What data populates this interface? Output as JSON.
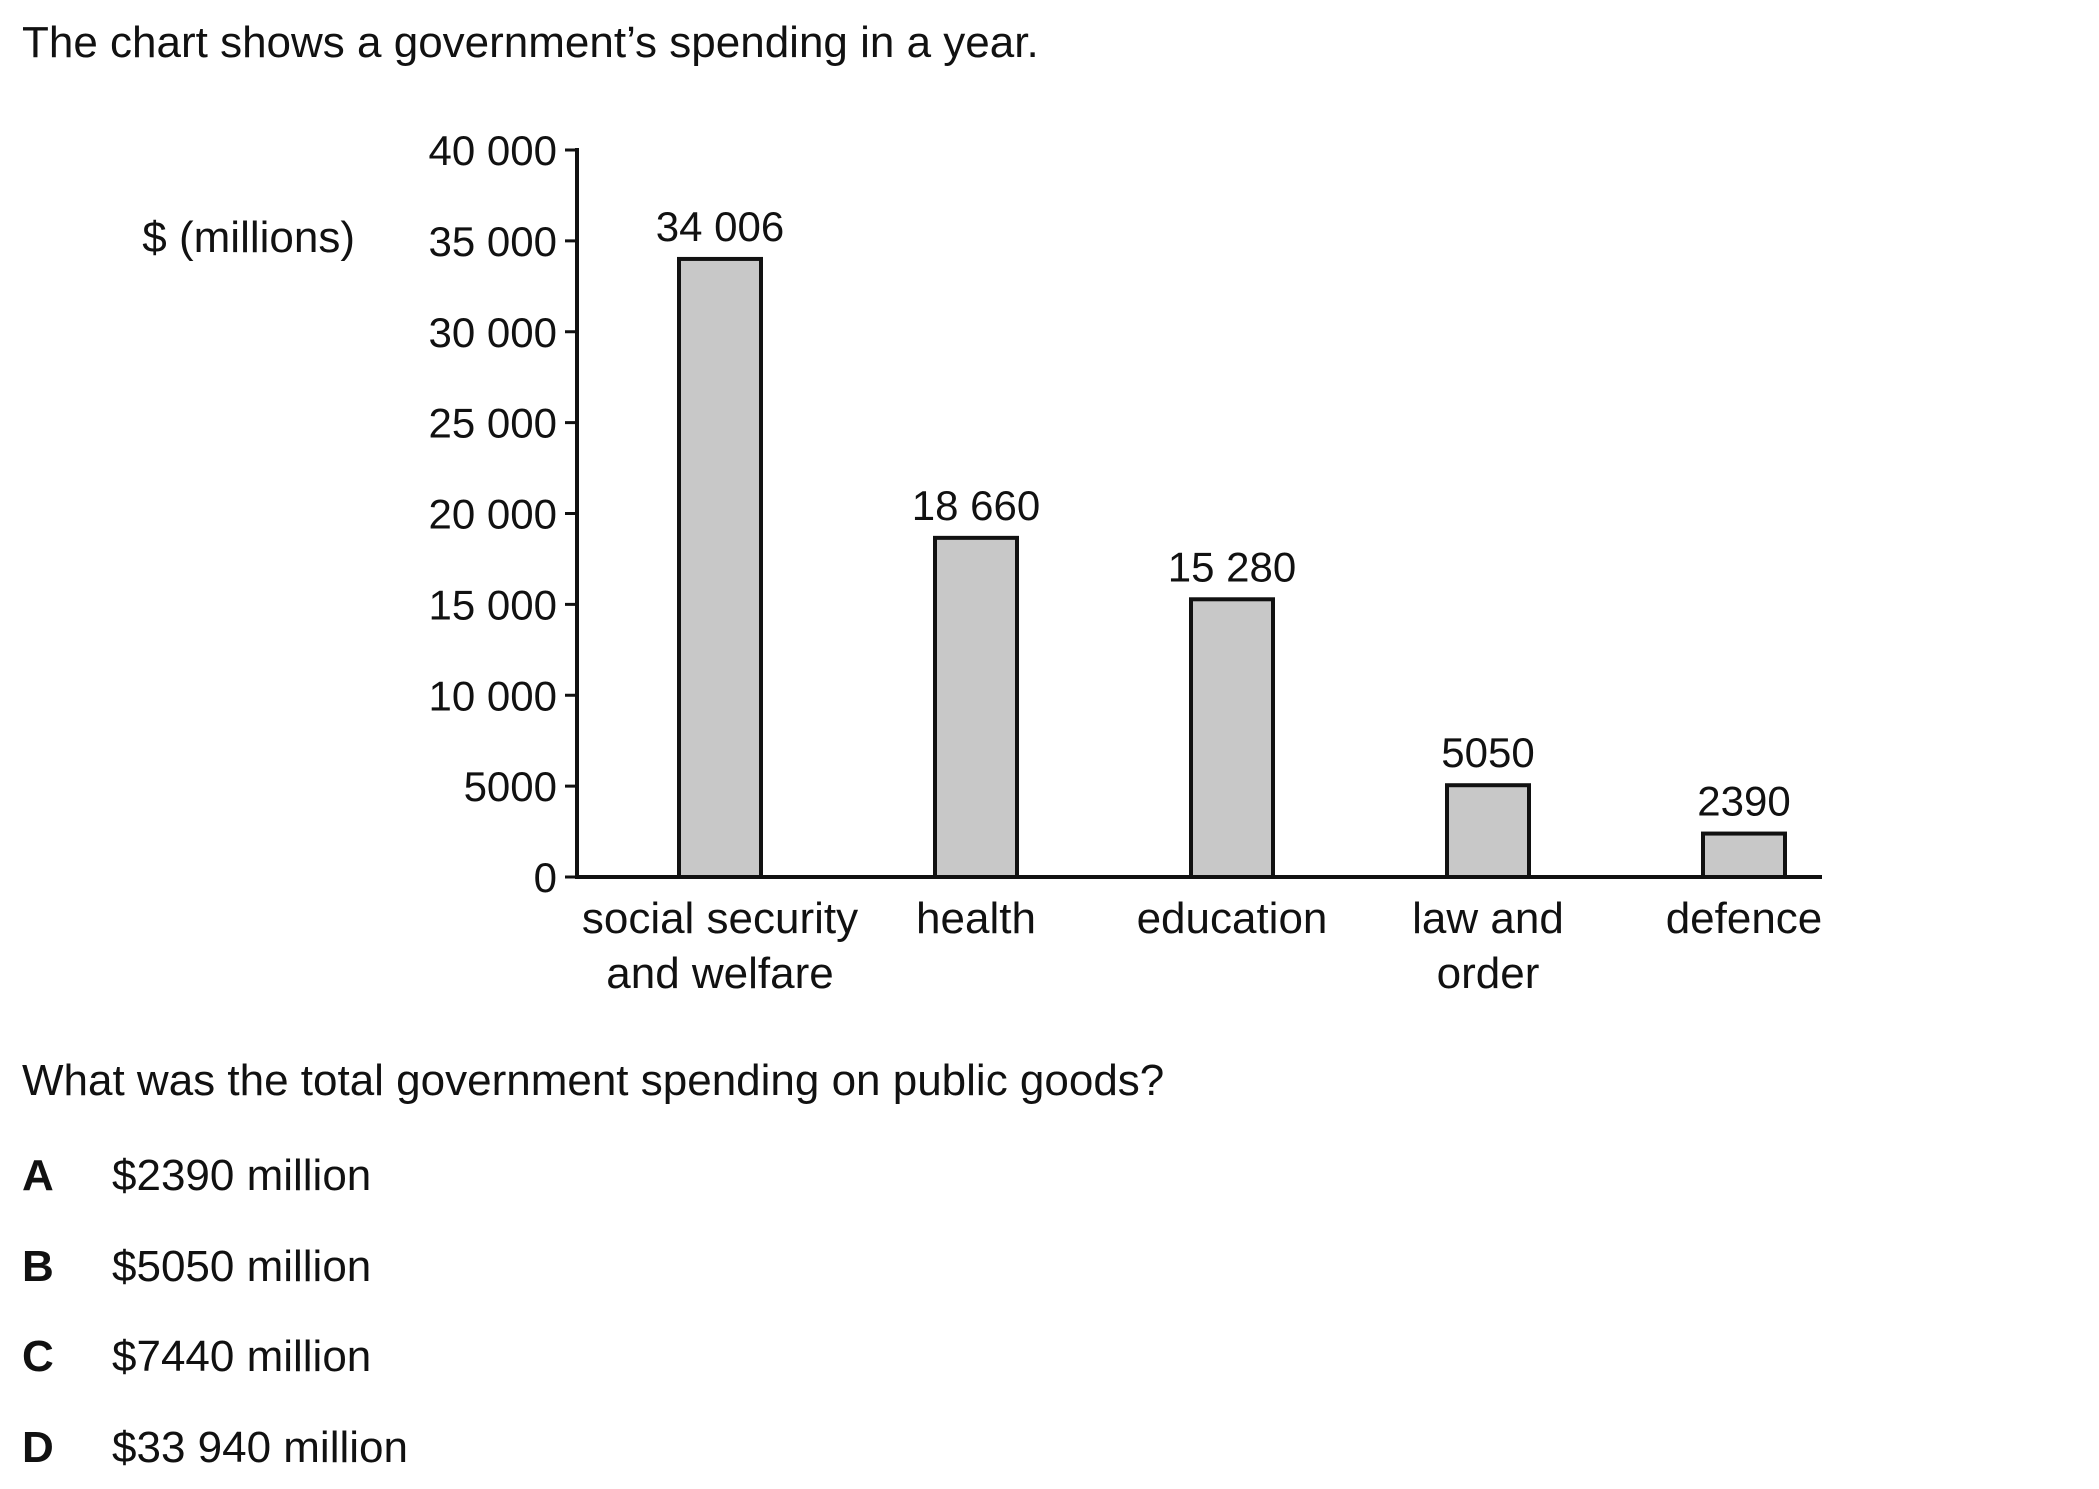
{
  "intro": "The chart shows a government’s spending in a year.",
  "question": "What was the total government spending on public goods?",
  "options": [
    {
      "letter": "A",
      "text": "$2390 million"
    },
    {
      "letter": "B",
      "text": "$5050 million"
    },
    {
      "letter": "C",
      "text": "$7440 million"
    },
    {
      "letter": "D",
      "text": "$33 940 million"
    }
  ],
  "chart_data": {
    "type": "bar",
    "ylabel": "$ (millions)",
    "xlabel": "",
    "title": "",
    "ylim": [
      0,
      40000
    ],
    "yticks": [
      0,
      5000,
      10000,
      15000,
      20000,
      25000,
      30000,
      35000,
      40000
    ],
    "ytick_labels": [
      "0",
      "5000",
      "10 000",
      "15 000",
      "20 000",
      "25 000",
      "30 000",
      "35 000",
      "40 000"
    ],
    "categories": [
      [
        "social security",
        "and welfare"
      ],
      [
        "health"
      ],
      [
        "education"
      ],
      [
        "law and",
        "order"
      ],
      [
        "defence"
      ]
    ],
    "values": [
      34006,
      18660,
      15280,
      5050,
      2390
    ],
    "value_labels": [
      "34 006",
      "18 660",
      "15 280",
      "5050",
      "2390"
    ],
    "bar_fill": "#c8c8c8",
    "bar_stroke": "#111111",
    "grid": false,
    "legend": "none"
  }
}
